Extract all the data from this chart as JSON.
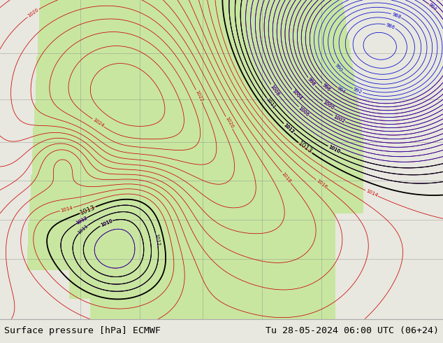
{
  "title_left": "Surface pressure [hPa] ECMWF",
  "title_right": "Tu 28-05-2024 06:00 UTC (06+24)",
  "title_fontsize": 9.5,
  "fig_width": 6.34,
  "fig_height": 4.9,
  "dpi": 100,
  "background_color": "#e8e8e0",
  "land_color": "#c8e6a0",
  "ocean_color": "#e0e0d8",
  "contour_red": "#cc0000",
  "contour_blue": "#0000cc",
  "contour_black": "#000000",
  "label_fontsize": 5.0,
  "label_black_fontsize": 6.5
}
